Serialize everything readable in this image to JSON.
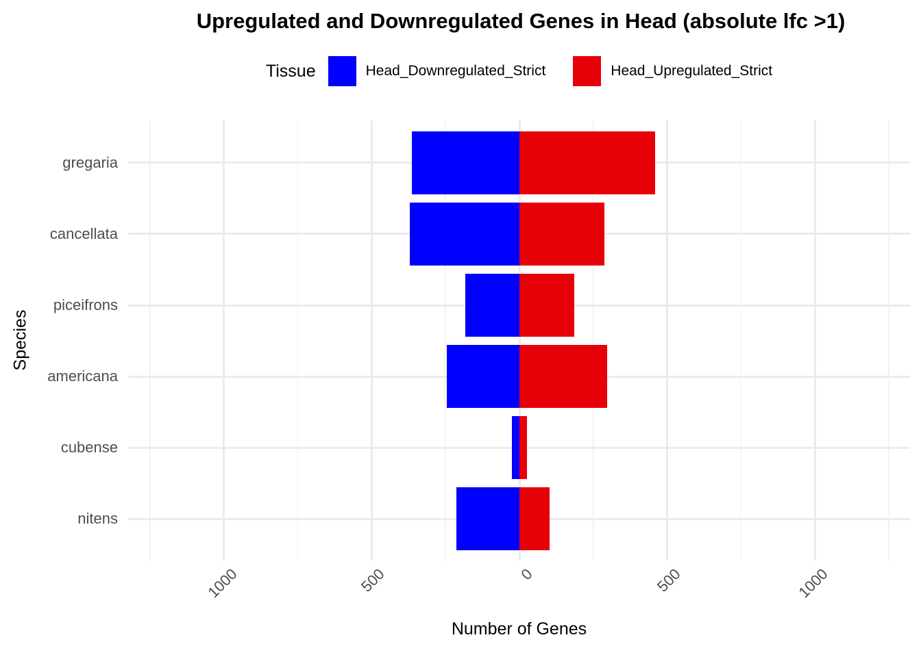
{
  "title": "Upregulated and Downregulated Genes in Head (absolute lfc >1)",
  "legend": {
    "title": "Tissue",
    "items": [
      {
        "label": "Head_Downregulated_Strict",
        "color": "#0000FF"
      },
      {
        "label": "Head_Upregulated_Strict",
        "color": "#E60008"
      }
    ]
  },
  "chart_data": {
    "type": "bar",
    "orientation": "horizontal-diverging",
    "title": "Upregulated and Downregulated Genes in Head (absolute lfc >1)",
    "xlabel": "Number of Genes",
    "ylabel": "Species",
    "categories": [
      "gregaria",
      "cancellata",
      "piceifrons",
      "americana",
      "cubense",
      "nitens"
    ],
    "series": [
      {
        "name": "Head_Downregulated_Strict",
        "direction": "left",
        "color": "#0000FF",
        "values": [
          365,
          370,
          184,
          246,
          26,
          213
        ]
      },
      {
        "name": "Head_Upregulated_Strict",
        "direction": "right",
        "color": "#E60008",
        "values": [
          460,
          287,
          185,
          298,
          26,
          102
        ]
      }
    ],
    "xlim": [
      -1322,
      1322
    ],
    "x_major_ticks": [
      -1000,
      -500,
      0,
      500,
      1000
    ],
    "x_tick_labels": [
      "1000",
      "500",
      "0",
      "500",
      "1000"
    ],
    "x_minor_ticks": [
      -1250,
      -750,
      -250,
      250,
      750,
      1250
    ],
    "grid": true,
    "legend_position": "top",
    "colors": {
      "grid_major": "#EBEBEB",
      "grid_minor": "#F3F3F3",
      "tick_label": "#4D4D4D",
      "text": "#000000",
      "background": "#FFFFFF"
    }
  }
}
